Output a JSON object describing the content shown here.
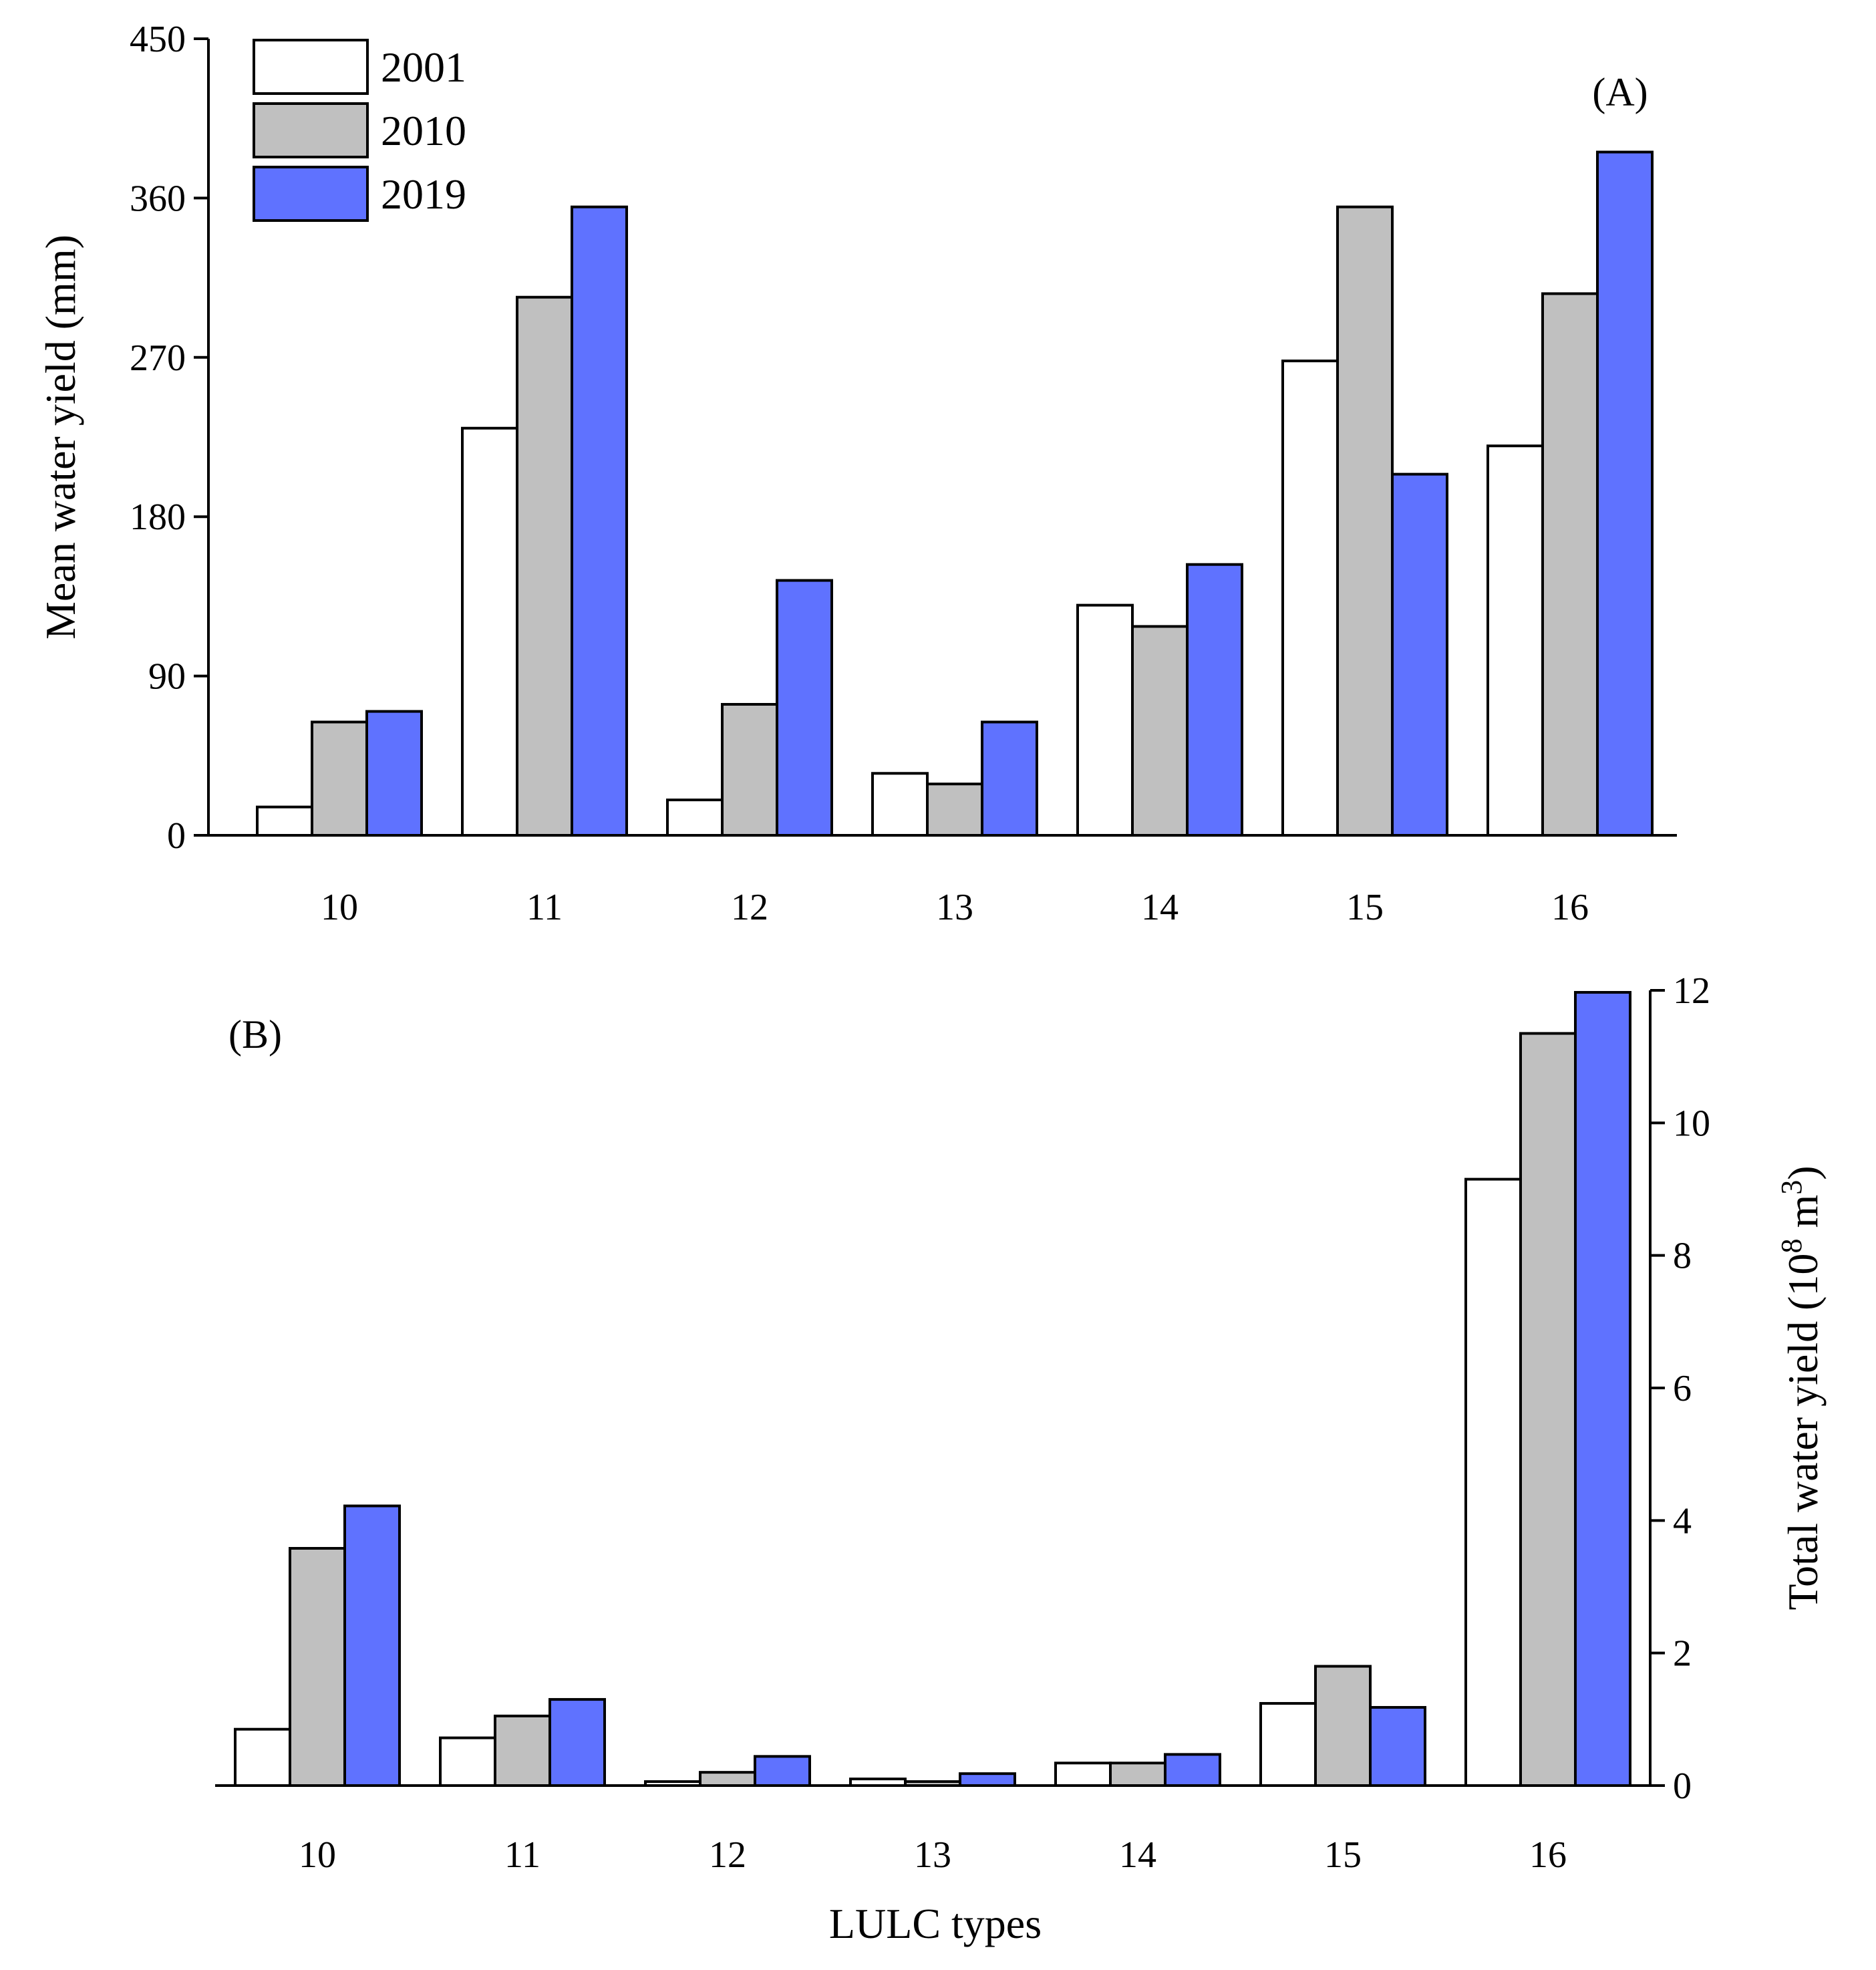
{
  "chart_data": [
    {
      "type": "bar",
      "panel_label": "(A)",
      "categories": [
        "10",
        "11",
        "12",
        "13",
        "14",
        "15",
        "16"
      ],
      "series": [
        {
          "name": "2001",
          "color": "#ffffff",
          "values": [
            16,
            230,
            20,
            35,
            130,
            268,
            220
          ]
        },
        {
          "name": "2010",
          "color": "#c0c0c0",
          "values": [
            64,
            304,
            74,
            29,
            118,
            355,
            306
          ]
        },
        {
          "name": "2019",
          "color": "#5f72ff",
          "values": [
            70,
            355,
            144,
            64,
            153,
            204,
            386
          ]
        }
      ],
      "ylabel": "Mean water yield (mm)",
      "xlabel": "",
      "ylim": [
        0,
        450
      ],
      "yticks": [
        0,
        90,
        180,
        270,
        360,
        450
      ],
      "y_axis_side": "left",
      "legend": "top-left",
      "grid": false
    },
    {
      "type": "bar",
      "panel_label": "(B)",
      "categories": [
        "10",
        "11",
        "12",
        "13",
        "14",
        "15",
        "16"
      ],
      "series": [
        {
          "name": "2001",
          "color": "#ffffff",
          "values": [
            0.85,
            0.72,
            0.06,
            0.1,
            0.34,
            1.24,
            9.15
          ]
        },
        {
          "name": "2010",
          "color": "#c0c0c0",
          "values": [
            3.58,
            1.05,
            0.2,
            0.06,
            0.34,
            1.8,
            11.35
          ]
        },
        {
          "name": "2019",
          "color": "#5f72ff",
          "values": [
            4.22,
            1.3,
            0.44,
            0.18,
            0.47,
            1.18,
            11.97
          ]
        }
      ],
      "ylabel_main": "Total water yield (10",
      "ylabel_exp1": "8",
      "ylabel_mid": " m",
      "ylabel_exp2": "3",
      "ylabel_end": ")",
      "xlabel": "LULC types",
      "ylim": [
        0,
        12
      ],
      "yticks": [
        0,
        2,
        4,
        6,
        8,
        10,
        12
      ],
      "y_axis_side": "right",
      "grid": false
    }
  ]
}
